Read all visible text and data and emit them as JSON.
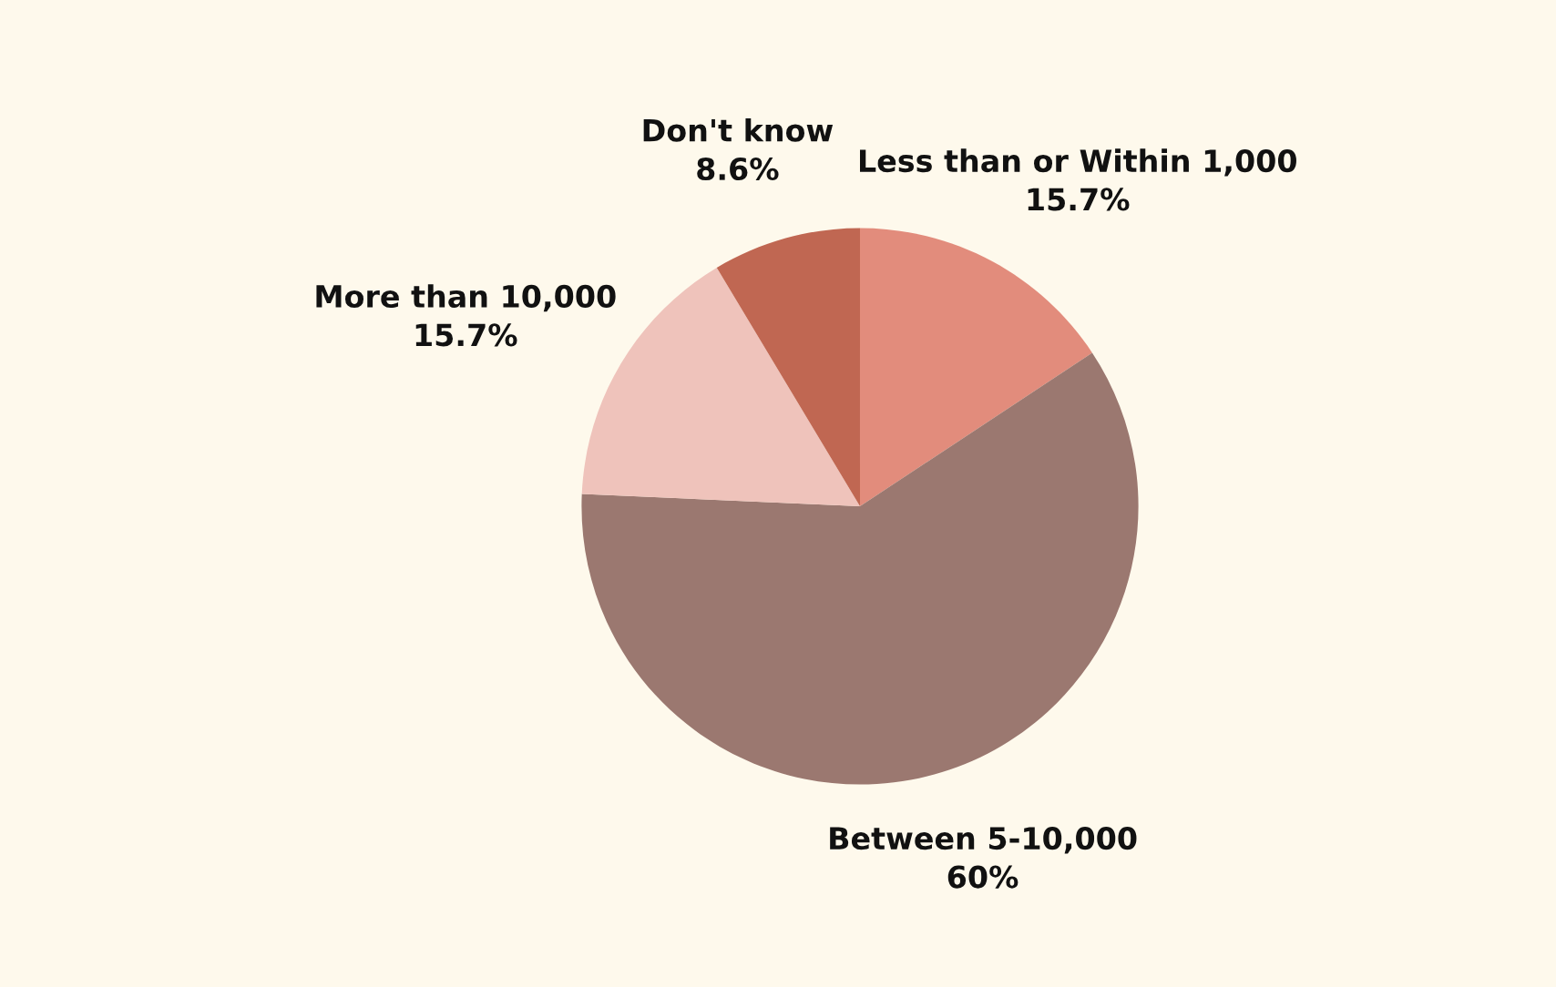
{
  "chart_data": {
    "type": "pie",
    "categories": [
      "Less than or Within 1,000",
      "Between 5-10,000",
      "More than 10,000",
      "Don't know"
    ],
    "values": [
      15.7,
      60,
      15.7,
      8.6
    ],
    "value_labels": [
      "15.7%",
      "60%",
      "15.7%",
      "8.6%"
    ],
    "colors": [
      "#e28c7c",
      "#9b7870",
      "#efc3bb",
      "#c06752"
    ]
  }
}
